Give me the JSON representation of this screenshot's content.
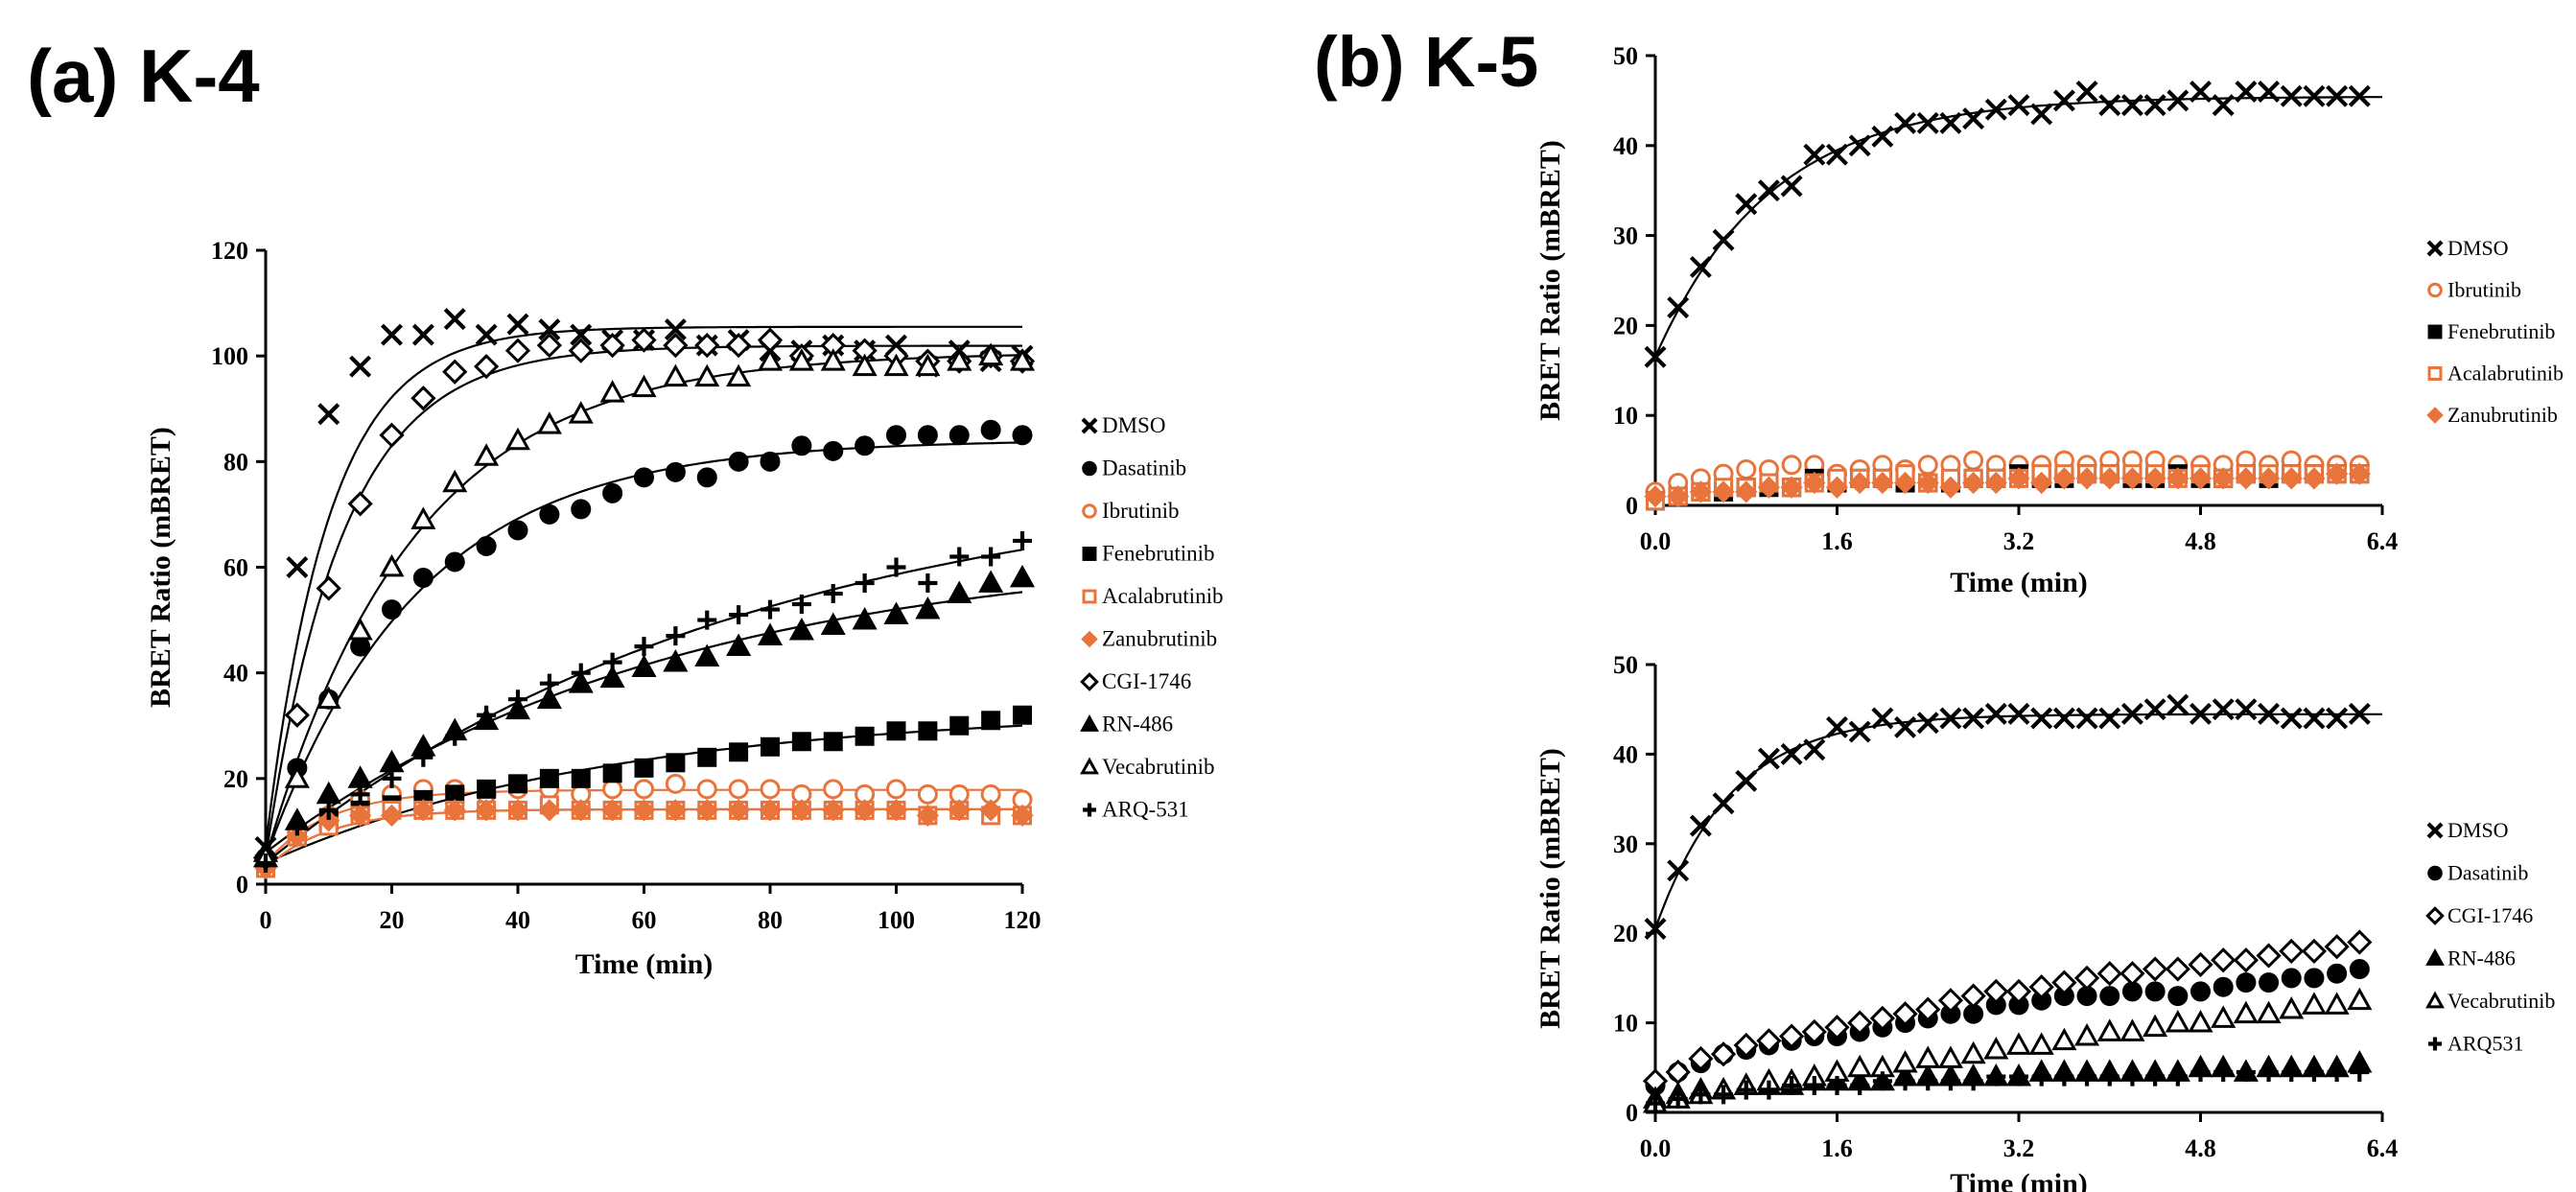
{
  "panel_a_label": "(a) K-4",
  "panel_b_label": "(b) K-5",
  "colors": {
    "black": "#000000",
    "orange": "#E8743B"
  },
  "chart_data": [
    {
      "id": "k4",
      "type": "scatter",
      "xlabel": "Time (min)",
      "ylabel": "BRET Ratio (mBRET)",
      "xlim": [
        0,
        120
      ],
      "ylim": [
        0,
        120
      ],
      "xticks": [
        "0",
        "20",
        "40",
        "60",
        "80",
        "100",
        "120"
      ],
      "yticks": [
        "0",
        "20",
        "40",
        "60",
        "80",
        "100",
        "120"
      ],
      "grid": false,
      "legend_position": "right",
      "x": [
        0,
        5,
        10,
        15,
        20,
        25,
        30,
        35,
        40,
        45,
        50,
        55,
        60,
        65,
        70,
        75,
        80,
        85,
        90,
        95,
        100,
        105,
        110,
        115,
        120
      ],
      "series": [
        {
          "name": "DMSO",
          "marker": "x",
          "color": "#000000",
          "fit": true,
          "values": [
            7,
            60,
            89,
            98,
            104,
            104,
            107,
            104,
            106,
            105,
            104,
            103,
            103,
            105,
            102,
            103,
            101,
            101,
            102,
            101,
            102,
            98,
            101,
            99,
            100
          ]
        },
        {
          "name": "Dasatinib",
          "marker": "circle",
          "color": "#000000",
          "fit": true,
          "values": [
            5,
            22,
            35,
            45,
            52,
            58,
            61,
            64,
            67,
            70,
            71,
            74,
            77,
            78,
            77,
            80,
            80,
            83,
            82,
            83,
            85,
            85,
            85,
            86,
            85
          ]
        },
        {
          "name": "Ibrutinib",
          "marker": "circle-open",
          "color": "#E8743B",
          "fit": true,
          "values": [
            4,
            10,
            13,
            16,
            17,
            18,
            18,
            17,
            18,
            18,
            17,
            18,
            18,
            19,
            18,
            18,
            18,
            17,
            18,
            17,
            18,
            17,
            17,
            17,
            16
          ]
        },
        {
          "name": "Fenebrutinib",
          "marker": "square",
          "color": "#000000",
          "fit": true,
          "values": [
            4,
            9,
            12,
            14,
            15,
            16,
            17,
            18,
            19,
            20,
            20,
            21,
            22,
            23,
            24,
            25,
            26,
            27,
            27,
            28,
            29,
            29,
            30,
            31,
            32
          ]
        },
        {
          "name": "Acalabrutinib",
          "marker": "square-open",
          "color": "#E8743B",
          "fit": true,
          "values": [
            3,
            9,
            11,
            13,
            14,
            14,
            14,
            14,
            14,
            15,
            14,
            14,
            14,
            14,
            14,
            14,
            14,
            14,
            14,
            14,
            14,
            13,
            14,
            13,
            13
          ]
        },
        {
          "name": "Zanubrutinib",
          "marker": "diamond",
          "color": "#E8743B",
          "fit": true,
          "values": [
            3,
            9,
            12,
            13,
            13,
            14,
            14,
            14,
            14,
            14,
            14,
            14,
            14,
            14,
            14,
            14,
            14,
            14,
            14,
            14,
            14,
            13,
            14,
            14,
            13
          ]
        },
        {
          "name": "CGI-1746",
          "marker": "diamond-open",
          "color": "#000000",
          "fit": true,
          "values": [
            5,
            32,
            56,
            72,
            85,
            92,
            97,
            98,
            101,
            102,
            101,
            102,
            103,
            102,
            102,
            102,
            103,
            100,
            102,
            101,
            100,
            99,
            99,
            100,
            99
          ]
        },
        {
          "name": "RN-486",
          "marker": "triangle",
          "color": "#000000",
          "fit": true,
          "values": [
            6,
            12,
            17,
            20,
            23,
            26,
            29,
            31,
            33,
            35,
            38,
            39,
            41,
            42,
            43,
            45,
            47,
            48,
            49,
            50,
            51,
            52,
            55,
            57,
            58
          ]
        },
        {
          "name": "Vecabrutinib",
          "marker": "triangle-open",
          "color": "#000000",
          "fit": true,
          "values": [
            5,
            20,
            35,
            48,
            60,
            69,
            76,
            81,
            84,
            87,
            89,
            93,
            94,
            96,
            96,
            96,
            99,
            99,
            99,
            98,
            98,
            98,
            99,
            100,
            99
          ]
        },
        {
          "name": "ARQ-531",
          "marker": "plus",
          "color": "#000000",
          "fit": true,
          "values": [
            4,
            11,
            14,
            17,
            20,
            24,
            28,
            32,
            35,
            38,
            40,
            42,
            45,
            47,
            50,
            51,
            52,
            53,
            55,
            57,
            60,
            57,
            62,
            62,
            65
          ]
        }
      ]
    },
    {
      "id": "k5_top",
      "type": "scatter",
      "xlabel": "Time (min)",
      "ylabel": "BRET Ratio (mBRET)",
      "xlim": [
        0,
        6.4
      ],
      "ylim": [
        0,
        50
      ],
      "xticks": [
        "0.0",
        "1.6",
        "3.2",
        "4.8",
        "6.4"
      ],
      "yticks": [
        "0",
        "10",
        "20",
        "30",
        "40",
        "50"
      ],
      "grid": false,
      "legend_position": "right",
      "x": [
        0,
        0.2,
        0.4,
        0.6,
        0.8,
        1.0,
        1.2,
        1.4,
        1.6,
        1.8,
        2.0,
        2.2,
        2.4,
        2.6,
        2.8,
        3.0,
        3.2,
        3.4,
        3.6,
        3.8,
        4.0,
        4.2,
        4.4,
        4.6,
        4.8,
        5.0,
        5.2,
        5.4,
        5.6,
        5.8,
        6.0,
        6.2
      ],
      "series": [
        {
          "name": "DMSO",
          "marker": "x",
          "color": "#000000",
          "fit": true,
          "values": [
            16.5,
            22,
            26.5,
            29.5,
            33.5,
            35,
            35.5,
            39,
            39,
            40,
            41,
            42.5,
            42.5,
            42.5,
            43,
            44,
            44.5,
            43.5,
            45,
            46,
            44.5,
            44.5,
            44.5,
            45,
            46,
            44.5,
            46,
            46,
            45.5,
            45.5,
            45.5,
            45.5
          ]
        },
        {
          "name": "Ibrutinib",
          "marker": "circle-open",
          "color": "#E8743B",
          "fit": false,
          "values": [
            1.5,
            2.5,
            3,
            3.5,
            4,
            4,
            4.5,
            4.5,
            3.5,
            4,
            4.5,
            4,
            4.5,
            4.5,
            5,
            4.5,
            4.5,
            4.5,
            5,
            4.5,
            5,
            5,
            5,
            4.5,
            4.5,
            4.5,
            5,
            4.5,
            5,
            4.5,
            4.5,
            4.5
          ]
        },
        {
          "name": "Fenebrutinib",
          "marker": "square",
          "color": "#000000",
          "fit": false,
          "values": [
            0.5,
            1,
            1.5,
            1.5,
            2,
            2,
            2,
            3,
            2.5,
            3,
            3,
            2.5,
            2.5,
            2.5,
            3,
            3,
            3.5,
            3,
            3,
            3.5,
            3.5,
            3,
            3,
            3.5,
            3,
            3,
            3.5,
            3,
            3.5,
            3.5,
            3.5,
            3.5
          ]
        },
        {
          "name": "Acalabrutinib",
          "marker": "square-open",
          "color": "#E8743B",
          "fit": false,
          "values": [
            0.5,
            1,
            1.5,
            2,
            2,
            2.5,
            2,
            2.5,
            3,
            3,
            3,
            3.5,
            2.5,
            3,
            3,
            3,
            3,
            3.5,
            3.5,
            3.5,
            3.5,
            3.5,
            3.5,
            3,
            3.5,
            3,
            3.5,
            3.5,
            3.5,
            3.5,
            3.5,
            3.5
          ]
        },
        {
          "name": "Zanubrutinib",
          "marker": "diamond",
          "color": "#E8743B",
          "fit": false,
          "values": [
            1,
            1,
            1.5,
            1.5,
            1.5,
            2,
            2,
            2.5,
            2,
            2.5,
            2.5,
            2.5,
            2.5,
            2,
            2.5,
            2.5,
            3,
            2.5,
            3,
            3,
            3,
            3,
            3,
            3,
            3,
            3,
            3,
            3,
            3,
            3,
            3.5,
            3.5
          ]
        }
      ]
    },
    {
      "id": "k5_bottom",
      "type": "scatter",
      "xlabel": "Time (min)",
      "ylabel": "BRET Ratio (mBRET)",
      "xlim": [
        0,
        6.4
      ],
      "ylim": [
        0,
        50
      ],
      "xticks": [
        "0.0",
        "1.6",
        "3.2",
        "4.8",
        "6.4"
      ],
      "yticks": [
        "0",
        "10",
        "20",
        "30",
        "40",
        "50"
      ],
      "grid": false,
      "legend_position": "right",
      "x": [
        0,
        0.2,
        0.4,
        0.6,
        0.8,
        1.0,
        1.2,
        1.4,
        1.6,
        1.8,
        2.0,
        2.2,
        2.4,
        2.6,
        2.8,
        3.0,
        3.2,
        3.4,
        3.6,
        3.8,
        4.0,
        4.2,
        4.4,
        4.6,
        4.8,
        5.0,
        5.2,
        5.4,
        5.6,
        5.8,
        6.0,
        6.2
      ],
      "series": [
        {
          "name": "DMSO",
          "marker": "x",
          "color": "#000000",
          "fit": true,
          "values": [
            20.5,
            27,
            32,
            34.5,
            37,
            39.5,
            40,
            40.5,
            43,
            42.5,
            44,
            43,
            43.5,
            44,
            44,
            44.5,
            44.5,
            44,
            44,
            44,
            44,
            44.5,
            45,
            45.5,
            44.5,
            45,
            45,
            44.5,
            44,
            44,
            44,
            44.5
          ]
        },
        {
          "name": "Dasatinib",
          "marker": "circle",
          "color": "#000000",
          "fit": false,
          "values": [
            3,
            4.5,
            5.5,
            6.5,
            7,
            7.5,
            8,
            8.5,
            8.5,
            9,
            9.5,
            10,
            10.5,
            11,
            11,
            12,
            12,
            12.5,
            13,
            13,
            13,
            13.5,
            13.5,
            13,
            13.5,
            14,
            14.5,
            14.5,
            15,
            15,
            15.5,
            16
          ]
        },
        {
          "name": "CGI-1746",
          "marker": "diamond-open",
          "color": "#000000",
          "fit": false,
          "values": [
            3.5,
            4.5,
            6,
            6.5,
            7.5,
            8,
            8.5,
            9,
            9.5,
            10,
            10.5,
            11,
            11.5,
            12.5,
            13,
            13.5,
            13.5,
            14,
            14.5,
            15,
            15.5,
            15.5,
            16,
            16,
            16.5,
            17,
            17,
            17.5,
            18,
            18,
            18.5,
            19
          ]
        },
        {
          "name": "RN-486",
          "marker": "triangle",
          "color": "#000000",
          "fit": false,
          "values": [
            1.5,
            2,
            2.5,
            2.5,
            3,
            3,
            3,
            3.5,
            3.5,
            3.5,
            3.5,
            4,
            4,
            4,
            4,
            4,
            4,
            4.5,
            4.5,
            4.5,
            4.5,
            4.5,
            4.5,
            4.5,
            5,
            5,
            4.5,
            5,
            5,
            5,
            5,
            5.5
          ]
        },
        {
          "name": "Vecabrutinib",
          "marker": "triangle-open",
          "color": "#000000",
          "fit": false,
          "values": [
            1,
            1.5,
            2,
            2.5,
            3,
            3.5,
            3.5,
            4,
            4.5,
            5,
            5,
            5.5,
            6,
            6,
            6.5,
            7,
            7.5,
            7.5,
            8,
            8.5,
            9,
            9,
            9.5,
            10,
            10,
            10.5,
            11,
            11,
            11.5,
            12,
            12,
            12.5
          ]
        },
        {
          "name": "ARQ531",
          "marker": "plus",
          "color": "#000000",
          "fit": false,
          "values": [
            1,
            1.5,
            2,
            2,
            2.5,
            2.5,
            3,
            3,
            3,
            3,
            3.5,
            3.5,
            3.5,
            3.5,
            3.5,
            4,
            4,
            4,
            4,
            4,
            4,
            4,
            4,
            4,
            4.5,
            4.5,
            4.5,
            4.5,
            4.5,
            4.5,
            4.5,
            4.5
          ]
        }
      ]
    }
  ]
}
